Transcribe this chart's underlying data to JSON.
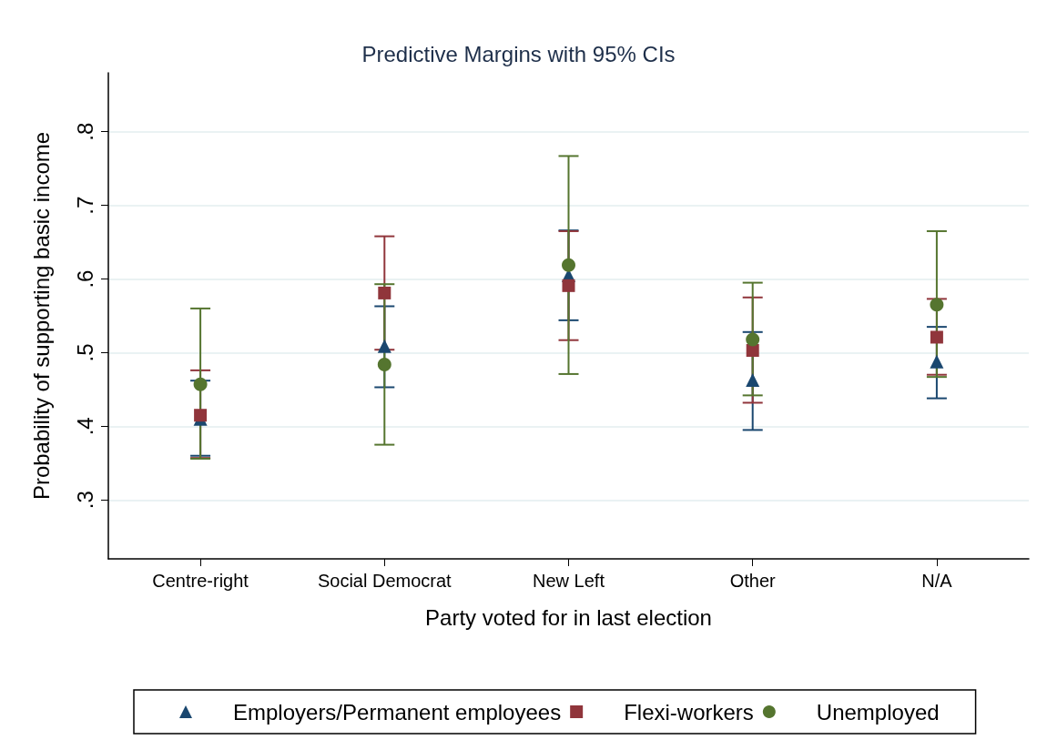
{
  "chart_data": {
    "type": "scatter",
    "title": "Predictive Margins with 95% CIs",
    "xlabel": "Party voted for in last election",
    "ylabel": "Probability of supporting basic income",
    "categories": [
      "Centre-right",
      "Social Democrat",
      "New Left",
      "Other",
      "N/A"
    ],
    "series": [
      {
        "name": "Employers/Permanent employees",
        "color": "#1a476f",
        "marker": "triangle",
        "values": [
          0.41,
          0.509,
          0.605,
          0.463,
          0.488
        ],
        "errors": [
          [
            0.36,
            0.462
          ],
          [
            0.453,
            0.563
          ],
          [
            0.544,
            0.666
          ],
          [
            0.395,
            0.528
          ],
          [
            0.438,
            0.535
          ]
        ]
      },
      {
        "name": "Flexi-workers",
        "color": "#90353b",
        "marker": "square",
        "values": [
          0.415,
          0.581,
          0.591,
          0.503,
          0.521
        ],
        "errors": [
          [
            0.357,
            0.476
          ],
          [
            0.504,
            0.658
          ],
          [
            0.517,
            0.665
          ],
          [
            0.432,
            0.575
          ],
          [
            0.47,
            0.573
          ]
        ]
      },
      {
        "name": "Unemployed",
        "color": "#55752f",
        "marker": "circle",
        "values": [
          0.457,
          0.484,
          0.619,
          0.518,
          0.565
        ],
        "errors": [
          [
            0.356,
            0.56
          ],
          [
            0.375,
            0.593
          ],
          [
            0.471,
            0.767
          ],
          [
            0.442,
            0.595
          ],
          [
            0.467,
            0.665
          ]
        ]
      }
    ],
    "ylim": [
      0.22,
      0.88
    ],
    "yticks": [
      {
        "value": 0.3,
        "label": ".3"
      },
      {
        "value": 0.4,
        "label": ".4"
      },
      {
        "value": 0.5,
        "label": ".5"
      },
      {
        "value": 0.6,
        "label": ".6"
      },
      {
        "value": 0.7,
        "label": ".7"
      },
      {
        "value": 0.8,
        "label": ".8"
      }
    ],
    "grid": "y",
    "legend": "bottom"
  }
}
